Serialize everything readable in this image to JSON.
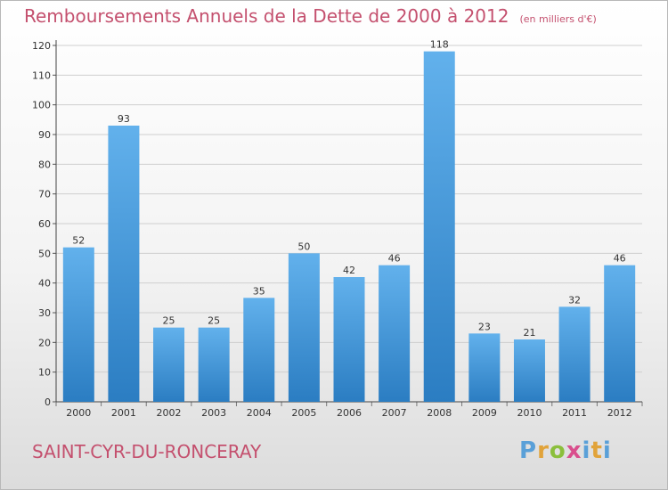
{
  "header": {
    "title": "Remboursements Annuels de la Dette de 2000 à 2012",
    "unit": "(en milliers d'€)"
  },
  "footer": {
    "commune": "SAINT-CYR-DU-RONCERAY",
    "logo": {
      "p": "P",
      "r": "r",
      "o": "o",
      "x": "x",
      "i": "i",
      "t": "t",
      "i2": "i"
    }
  },
  "colors": {
    "bar_light": "#62b1ec",
    "bar_dark": "#2b7dc2",
    "title": "#c4506e",
    "grid": "#cfcfcf"
  },
  "chart_data": {
    "type": "bar",
    "categories": [
      "2000",
      "2001",
      "2002",
      "2003",
      "2004",
      "2005",
      "2006",
      "2007",
      "2008",
      "2009",
      "2010",
      "2011",
      "2012"
    ],
    "values": [
      52,
      93,
      25,
      25,
      35,
      50,
      42,
      46,
      118,
      23,
      21,
      32,
      46
    ],
    "yticks": [
      0,
      10,
      20,
      30,
      40,
      50,
      60,
      70,
      80,
      90,
      100,
      110,
      120
    ],
    "ylim": [
      0,
      120
    ],
    "grid": true,
    "legend": "none"
  }
}
